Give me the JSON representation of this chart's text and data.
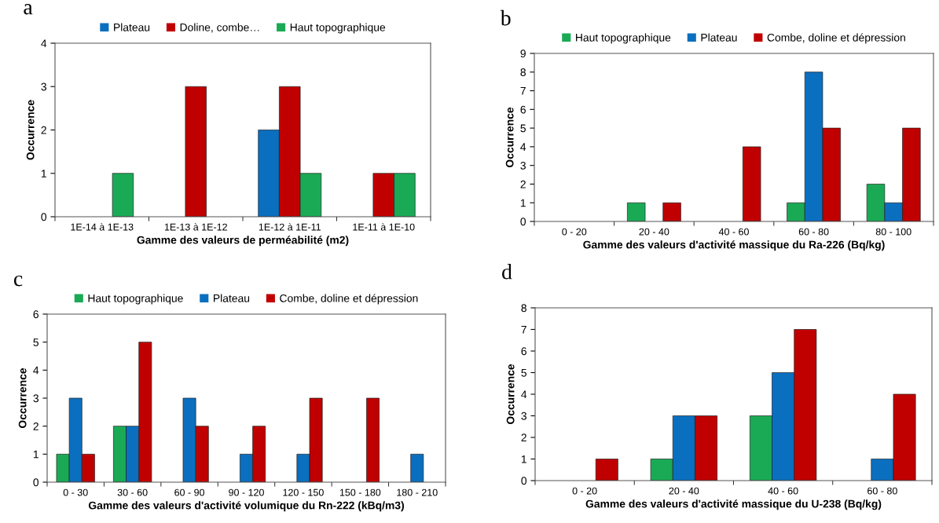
{
  "chart_data": [
    {
      "type": "bar",
      "title": "a",
      "xlabel": "Gamme des valeurs de perméabilité (m2)",
      "ylabel": "Occurrence",
      "categories": [
        "1E-14 à 1E-13",
        "1E-13 à 1E-12",
        "1E-12 à 1E-11",
        "1E-11 à 1E-10"
      ],
      "ylim": [
        0,
        4
      ],
      "yticks": [
        0,
        1,
        2,
        3,
        4
      ],
      "legend": "top",
      "grid": false,
      "series": [
        {
          "name": "Plateau",
          "color": "#0b6fbf",
          "values": [
            0,
            0,
            2,
            0
          ]
        },
        {
          "name": "Doline, combe…",
          "color": "#c00000",
          "values": [
            0,
            3,
            3,
            1
          ]
        },
        {
          "name": "Haut topographique",
          "color": "#1aaa55",
          "values": [
            1,
            0,
            1,
            1
          ]
        }
      ]
    },
    {
      "type": "bar",
      "title": "b",
      "xlabel": "Gamme des valeurs d'activité massique du Ra-226 (Bq/kg)",
      "ylabel": "Occurrence",
      "categories": [
        "0 - 20",
        "20 - 40",
        "40 - 60",
        "60 - 80",
        "80 - 100"
      ],
      "ylim": [
        0,
        9
      ],
      "yticks": [
        0,
        1,
        2,
        3,
        4,
        5,
        6,
        7,
        8,
        9
      ],
      "legend": "top",
      "grid": false,
      "series": [
        {
          "name": "Haut topographique",
          "color": "#1aaa55",
          "values": [
            0,
            1,
            0,
            1,
            2
          ]
        },
        {
          "name": "Plateau",
          "color": "#0b6fbf",
          "values": [
            0,
            0,
            0,
            8,
            1
          ]
        },
        {
          "name": "Combe, doline et dépression",
          "color": "#c00000",
          "values": [
            0,
            1,
            4,
            5,
            5
          ]
        }
      ]
    },
    {
      "type": "bar",
      "title": "c",
      "xlabel": "Gamme des valeurs d'activité volumique du Rn-222 (kBq/m3)",
      "ylabel": "Occurrence",
      "categories": [
        "0 - 30",
        "30 - 60",
        "60 - 90",
        "90 - 120",
        "120 - 150",
        "150 - 180",
        "180 - 210"
      ],
      "ylim": [
        0,
        6
      ],
      "yticks": [
        0,
        1,
        2,
        3,
        4,
        5,
        6
      ],
      "legend": "top",
      "grid": false,
      "series": [
        {
          "name": "Haut topographique",
          "color": "#1aaa55",
          "values": [
            1,
            2,
            0,
            0,
            0,
            0,
            0
          ]
        },
        {
          "name": "Plateau",
          "color": "#0b6fbf",
          "values": [
            3,
            2,
            3,
            1,
            1,
            0,
            1
          ]
        },
        {
          "name": "Combe, doline et dépression",
          "color": "#c00000",
          "values": [
            1,
            5,
            2,
            2,
            3,
            3,
            0
          ]
        }
      ]
    },
    {
      "type": "bar",
      "title": "d",
      "xlabel": "Gamme des valeurs d'activité massique du U-238 (Bq/kg)",
      "ylabel": "Occurrence",
      "categories": [
        "0 - 20",
        "20 - 40",
        "40 - 60",
        "60 - 80"
      ],
      "ylim": [
        0,
        8
      ],
      "yticks": [
        0,
        1,
        2,
        3,
        4,
        5,
        6,
        7,
        8
      ],
      "grid": false,
      "series": [
        {
          "color": "#1aaa55",
          "values": [
            0,
            1,
            3,
            0
          ]
        },
        {
          "color": "#0b6fbf",
          "values": [
            0,
            3,
            5,
            1
          ]
        },
        {
          "color": "#c00000",
          "values": [
            1,
            3,
            7,
            4
          ]
        }
      ]
    }
  ]
}
